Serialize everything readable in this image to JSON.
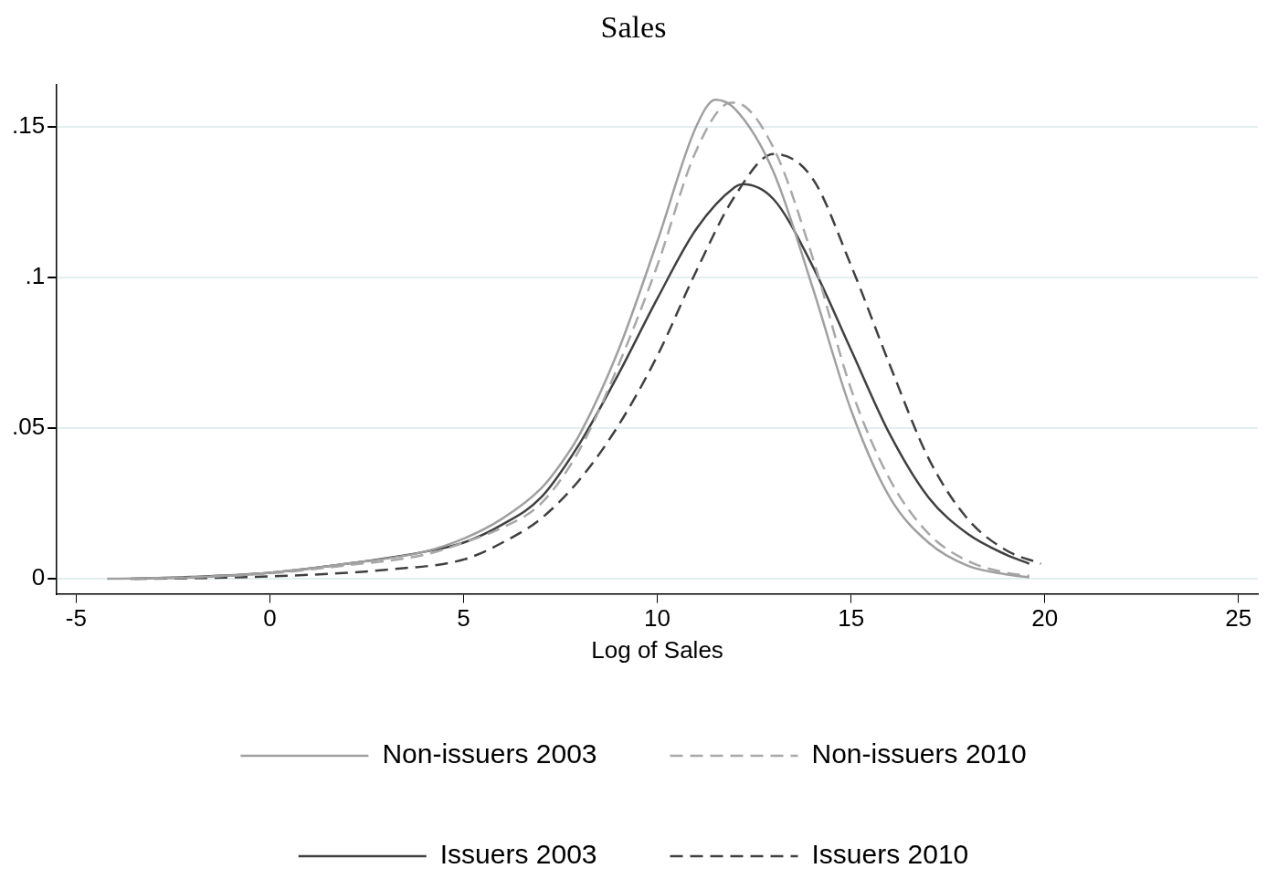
{
  "chart_data": {
    "type": "line",
    "title": "Sales",
    "xlabel": "Log of Sales",
    "xlim": [
      -5.5,
      25.5
    ],
    "xticks": [
      -5,
      0,
      5,
      10,
      15,
      20,
      25
    ],
    "ylim": [
      -0.005,
      0.164
    ],
    "yticks": [
      0,
      {
        "value": 0.05,
        "label": ".05"
      },
      {
        "value": 0.1,
        "label": ".1"
      },
      {
        "value": 0.15,
        "label": ".15"
      }
    ],
    "grid": "y",
    "legend": "bottom",
    "marker": "none",
    "series": [
      {
        "name": "Non-issuers 2003",
        "color": "#a0a0a0",
        "line_style": "solid",
        "x": [
          -4.2,
          -2,
          0,
          2,
          4,
          5,
          6,
          7,
          7.5,
          8,
          9,
          10,
          11,
          11.5,
          12,
          13,
          14,
          15,
          16,
          17,
          18,
          19,
          19.6
        ],
        "values": [
          0,
          0.0005,
          0.002,
          0.005,
          0.009,
          0.0133,
          0.02,
          0.03,
          0.038,
          0.048,
          0.076,
          0.112,
          0.15,
          0.159,
          0.156,
          0.135,
          0.097,
          0.056,
          0.027,
          0.012,
          0.0044,
          0.0015,
          0.0005
        ]
      },
      {
        "name": "Non-issuers 2010",
        "color": "#a8a8a8",
        "line_style": "dashed",
        "x": [
          -3.6,
          -2,
          0,
          2,
          4,
          5,
          6,
          7,
          8,
          9,
          10,
          11,
          11.9,
          12,
          13,
          14,
          15,
          16,
          17,
          18,
          19,
          19.6
        ],
        "values": [
          0,
          0.0005,
          0.0018,
          0.0045,
          0.008,
          0.012,
          0.017,
          0.025,
          0.043,
          0.071,
          0.104,
          0.142,
          0.158,
          0.158,
          0.143,
          0.107,
          0.063,
          0.033,
          0.015,
          0.006,
          0.002,
          0.001
        ]
      },
      {
        "name": "Issuers 2003",
        "color": "#404040",
        "line_style": "solid",
        "x": [
          -3.6,
          -2,
          0,
          2,
          4,
          5,
          6,
          7,
          8,
          9,
          10,
          11,
          12,
          12.2,
          13,
          14,
          15,
          16,
          17,
          18,
          19,
          19.6
        ],
        "values": [
          0,
          0.0006,
          0.002,
          0.005,
          0.009,
          0.012,
          0.018,
          0.027,
          0.045,
          0.068,
          0.093,
          0.116,
          0.13,
          0.131,
          0.126,
          0.104,
          0.076,
          0.048,
          0.027,
          0.015,
          0.008,
          0.005
        ]
      },
      {
        "name": "Issuers 2010",
        "color": "#404040",
        "line_style": "dashed",
        "x": [
          -3.5,
          -2,
          0,
          2,
          3,
          5,
          6,
          7,
          8,
          9,
          10,
          11,
          12,
          13,
          14,
          15,
          16,
          17,
          18,
          19,
          19.9
        ],
        "values": [
          0,
          0.0002,
          0.0008,
          0.002,
          0.003,
          0.0064,
          0.012,
          0.02,
          0.033,
          0.051,
          0.074,
          0.102,
          0.127,
          0.141,
          0.133,
          0.104,
          0.071,
          0.04,
          0.02,
          0.0095,
          0.005
        ]
      }
    ]
  }
}
